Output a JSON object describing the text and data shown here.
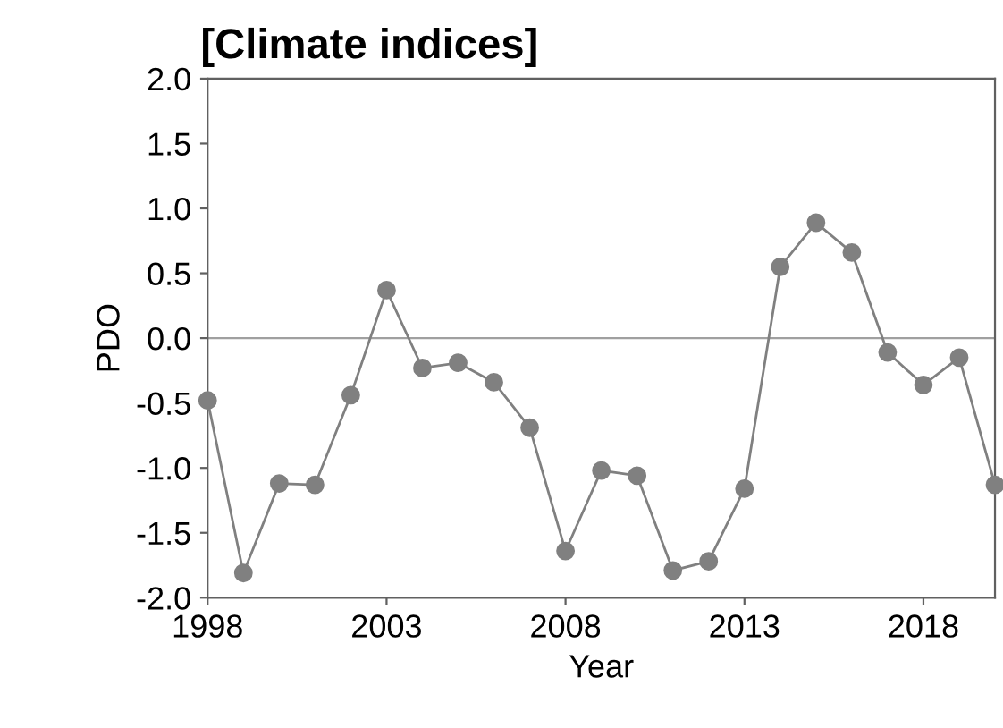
{
  "chart_data": {
    "type": "line",
    "title": "[Climate indices]",
    "xlabel": "Year",
    "ylabel": "PDO",
    "x": [
      1998,
      1999,
      2000,
      2001,
      2002,
      2003,
      2004,
      2005,
      2006,
      2007,
      2008,
      2009,
      2010,
      2011,
      2012,
      2013,
      2014,
      2015,
      2016,
      2017,
      2018,
      2019,
      2020
    ],
    "series": [
      {
        "color": "#808080",
        "values": [
          -0.48,
          -1.81,
          -1.12,
          -1.13,
          -0.44,
          0.37,
          -0.23,
          -0.19,
          -0.34,
          -0.69,
          -1.64,
          -1.02,
          -1.06,
          -1.79,
          -1.72,
          -1.16,
          0.55,
          0.89,
          0.66,
          -0.11,
          -0.36,
          -0.15,
          -1.13
        ]
      }
    ],
    "xlim": [
      1998,
      2020
    ],
    "xticks": [
      1998,
      2003,
      2008,
      2013,
      2018
    ],
    "ylim": [
      -2.0,
      2.0
    ],
    "yticks": [
      {
        "value": -2.0,
        "label": "-2.0"
      },
      {
        "value": -1.5,
        "label": "-1.5"
      },
      {
        "value": -1.0,
        "label": "-1.0"
      },
      {
        "value": -0.5,
        "label": "-0.5"
      },
      {
        "value": 0.0,
        "label": "0.0"
      },
      {
        "value": 0.5,
        "label": "0.5"
      },
      {
        "value": 1.0,
        "label": "1.0"
      },
      {
        "value": 1.5,
        "label": "1.5"
      },
      {
        "value": 2.0,
        "label": "2.0"
      }
    ],
    "ref_lines": [
      {
        "axis": "y",
        "value": 0,
        "color": "#a0a0a0"
      }
    ],
    "marker": "circle",
    "line_style": "solid",
    "grid": false,
    "legend": false
  }
}
